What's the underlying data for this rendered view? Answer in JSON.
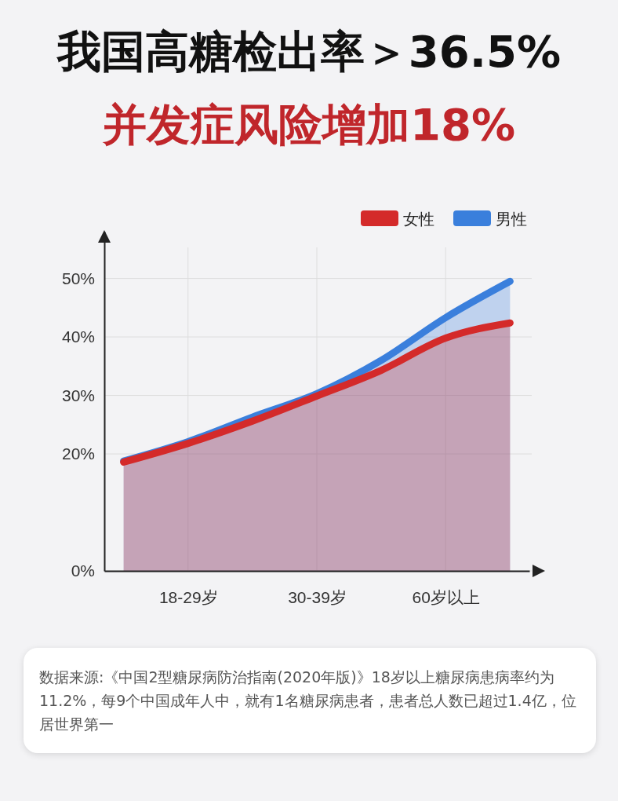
{
  "chart_data": {
    "type": "area",
    "title": "我国高糖检出率＞36.5%",
    "subtitle": "并发症风险增加18%",
    "categories": [
      null,
      "18-29岁",
      null,
      "30-39岁",
      null,
      "60岁以上",
      null
    ],
    "ylim": [
      0,
      58
    ],
    "yticks": [
      {
        "value": 0,
        "label": "0%"
      },
      {
        "value": 20,
        "label": "20%"
      },
      {
        "value": 30,
        "label": "30%"
      },
      {
        "value": 40,
        "label": "40%"
      },
      {
        "value": 50,
        "label": "50%"
      }
    ],
    "grid": true,
    "legend": "top right",
    "line_style": "solid",
    "series": [
      {
        "name": "男性",
        "color": "#3a7fdc",
        "values": [
          18.8,
          22.1,
          26.3,
          30.3,
          36.0,
          43.3,
          49.5
        ]
      },
      {
        "name": "女性",
        "color": "#d42a2a",
        "values": [
          18.6,
          21.8,
          25.6,
          29.9,
          34.3,
          39.8,
          42.4
        ]
      }
    ],
    "annotations": [
      "数据来源:《中国2型糖尿病防治指南(2020年版)》18岁以上糖尿病患病率约为11.2%，每9个中国成年人中，就有1名糖尿病患者，患者总人数已超过1.4亿，位居世界第一"
    ]
  }
}
